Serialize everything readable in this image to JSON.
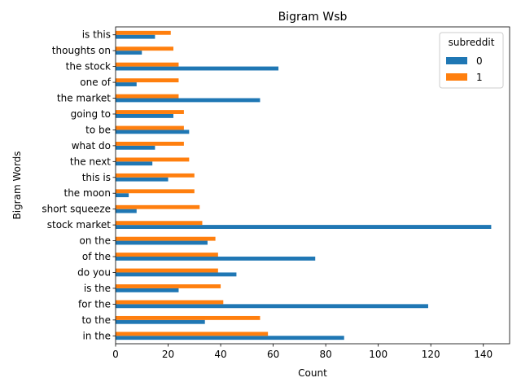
{
  "chart_data": {
    "type": "bar",
    "orientation": "horizontal",
    "title": "Bigram Wsb",
    "xlabel": "Count",
    "ylabel": "Bigram Words",
    "xlim": [
      0,
      150
    ],
    "xticks": [
      0,
      20,
      40,
      60,
      80,
      100,
      120,
      140
    ],
    "grid": false,
    "legend": {
      "title": "subreddit",
      "placement": "top-right"
    },
    "categories": [
      "in the",
      "to the",
      "for the",
      "is the",
      "do you",
      "of the",
      "on the",
      "stock market",
      "short squeeze",
      "the moon",
      "this is",
      "the next",
      "what do",
      "to be",
      "going to",
      "the market",
      "one of",
      "the stock",
      "thoughts on",
      "is this"
    ],
    "series": [
      {
        "name": "0",
        "color": "#1f77b4",
        "values": [
          87,
          34,
          119,
          24,
          46,
          76,
          35,
          143,
          8,
          5,
          20,
          14,
          15,
          28,
          22,
          55,
          8,
          62,
          10,
          15
        ]
      },
      {
        "name": "1",
        "color": "#ff7f0e",
        "values": [
          58,
          55,
          41,
          40,
          39,
          39,
          38,
          33,
          32,
          30,
          30,
          28,
          26,
          26,
          26,
          24,
          24,
          24,
          22,
          21
        ]
      }
    ]
  }
}
